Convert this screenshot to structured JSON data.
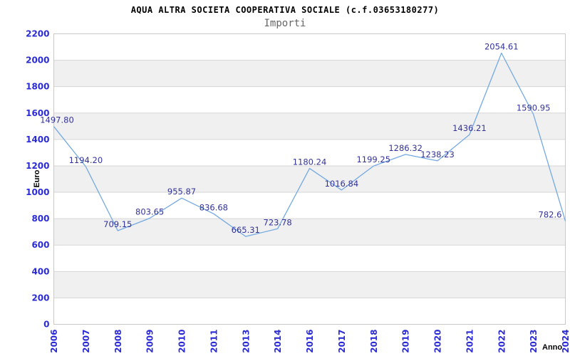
{
  "chart_data": {
    "type": "line",
    "title": "AQUA ALTRA SOCIETA COOPERATIVA SOCIALE (c.f.03653180277)",
    "subtitle": "Importi",
    "xlabel": "Anno",
    "ylabel": "Euro",
    "categories": [
      "2006",
      "2007",
      "2008",
      "2009",
      "2010",
      "2011",
      "2013",
      "2014",
      "2016",
      "2017",
      "2018",
      "2019",
      "2020",
      "2021",
      "2022",
      "2023",
      "2024"
    ],
    "values": [
      1497.8,
      1194.2,
      709.15,
      803.65,
      955.87,
      836.68,
      665.31,
      723.78,
      1180.24,
      1016.84,
      1199.25,
      1286.32,
      1238.23,
      1436.21,
      2054.61,
      1590.95,
      782.6
    ],
    "point_labels": [
      "1497.80",
      "1194.20",
      "709.15",
      "803.65",
      "955.87",
      "836.68",
      "665.31",
      "723.78",
      "1180.24",
      "1016.84",
      "1199.25",
      "1286.32",
      "1238.23",
      "1436.21",
      "2054.61",
      "1590.95",
      "782.6"
    ],
    "ylim": [
      0,
      2200
    ],
    "ytick_step": 200,
    "grid": true,
    "legend_position": "none",
    "banding": "alternating horizontal gray bands every 200 units, white at top interval",
    "colors": {
      "line": "#74a9e3",
      "point_label": "#333399",
      "tick_label": "#2b2bd6",
      "band": "#f0f0f0",
      "gridline": "#d6d6d6",
      "plot_border": "#c9c9c9",
      "title": "#000000",
      "subtitle": "#666666",
      "axis_title": "#000000",
      "background": "#ffffff"
    }
  }
}
